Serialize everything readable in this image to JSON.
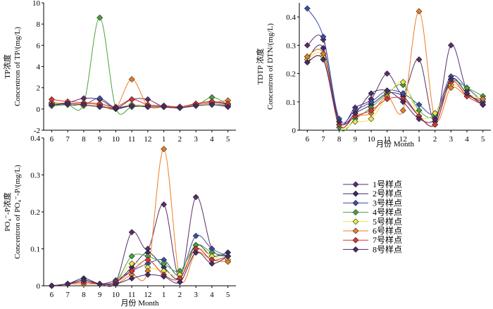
{
  "chart_data": [
    {
      "type": "line",
      "ylabel_1": "TP浓度",
      "ylabel_2": "Concentron of TP/(mg/L)",
      "xlabel": "",
      "ylim": [
        -2,
        10
      ],
      "yticks": [
        "-2",
        "0",
        "2",
        "4",
        "6",
        "8",
        "10"
      ],
      "categories": [
        "6",
        "7",
        "8",
        "9",
        "10",
        "11",
        "12",
        "1",
        "2",
        "3",
        "4",
        "5"
      ],
      "series": [
        {
          "name": "1号样点",
          "values": [
            0.5,
            0.6,
            1.0,
            0.9,
            0.1,
            0.9,
            0.9,
            0.2,
            0.2,
            0.5,
            0.7,
            0.4
          ]
        },
        {
          "name": "2号样点",
          "values": [
            0.3,
            0.5,
            0.3,
            0.3,
            0.0,
            0.3,
            0.2,
            0.2,
            0.1,
            0.4,
            0.5,
            0.3
          ]
        },
        {
          "name": "3号样点",
          "values": [
            0.6,
            0.4,
            0.4,
            1.0,
            0.1,
            0.4,
            0.3,
            0.3,
            0.2,
            0.4,
            0.6,
            0.5
          ]
        },
        {
          "name": "4号样点",
          "values": [
            0.3,
            0.4,
            0.5,
            8.6,
            0.1,
            0.2,
            0.3,
            0.3,
            0.2,
            0.3,
            1.1,
            0.4
          ]
        },
        {
          "name": "5号样点",
          "values": [
            0.5,
            0.5,
            0.3,
            0.3,
            0.1,
            0.4,
            0.3,
            0.3,
            0.2,
            0.4,
            0.5,
            0.4
          ]
        },
        {
          "name": "6号样点",
          "values": [
            0.6,
            0.5,
            0.5,
            0.4,
            0.1,
            2.8,
            0.3,
            0.2,
            0.2,
            0.4,
            0.6,
            0.8
          ]
        },
        {
          "name": "7号样点",
          "values": [
            0.9,
            0.7,
            0.6,
            0.5,
            0.2,
            0.9,
            0.4,
            0.3,
            0.2,
            0.5,
            0.7,
            0.5
          ]
        },
        {
          "name": "8号样点",
          "values": [
            0.4,
            0.5,
            0.4,
            0.2,
            0.1,
            0.3,
            0.2,
            0.2,
            0.1,
            0.3,
            0.4,
            0.2
          ]
        }
      ]
    },
    {
      "type": "line",
      "ylabel_1": "TDTP 浓度",
      "ylabel_2": "Concentron of DTN/(mg/L)",
      "xlabel": "月份 Month",
      "ylim": [
        0,
        0.45
      ],
      "yticks": [
        "0",
        "0.1",
        "0.2",
        "0.3",
        "0.4"
      ],
      "categories": [
        "6",
        "7",
        "8",
        "9",
        "10",
        "11",
        "12",
        "1",
        "2",
        "3",
        "4",
        "5"
      ],
      "series": [
        {
          "name": "1号样点",
          "values": [
            0.3,
            0.32,
            0.03,
            0.08,
            0.11,
            0.2,
            0.13,
            0.25,
            0.03,
            0.3,
            0.14,
            0.1
          ]
        },
        {
          "name": "2号样点",
          "values": [
            0.25,
            0.29,
            0.02,
            0.06,
            0.09,
            0.13,
            0.12,
            0.05,
            0.02,
            0.18,
            0.13,
            0.09
          ]
        },
        {
          "name": "3号样点",
          "values": [
            0.43,
            0.33,
            0.04,
            0.07,
            0.1,
            0.14,
            0.13,
            0.09,
            0.06,
            0.19,
            0.15,
            0.1
          ]
        },
        {
          "name": "4号样点",
          "values": [
            0.26,
            0.27,
            0.01,
            0.04,
            0.08,
            0.13,
            0.16,
            0.07,
            0.05,
            0.17,
            0.15,
            0.12
          ]
        },
        {
          "name": "5号样点",
          "values": [
            0.25,
            0.26,
            0.02,
            0.03,
            0.04,
            0.12,
            0.17,
            0.05,
            0.06,
            0.16,
            0.13,
            0.11
          ]
        },
        {
          "name": "6号样点",
          "values": [
            0.26,
            0.27,
            0.02,
            0.05,
            0.06,
            0.12,
            0.07,
            0.42,
            0.04,
            0.15,
            0.12,
            0.11
          ]
        },
        {
          "name": "7号样点",
          "values": [
            0.24,
            0.25,
            0.02,
            0.05,
            0.07,
            0.11,
            0.11,
            0.05,
            0.02,
            0.17,
            0.12,
            0.09
          ]
        },
        {
          "name": "8号样点",
          "values": [
            0.24,
            0.25,
            0.03,
            0.06,
            0.13,
            0.14,
            0.1,
            0.04,
            0.04,
            0.18,
            0.13,
            0.09
          ]
        }
      ]
    },
    {
      "type": "line",
      "ylabel_1": "PO₄⁻-P浓度",
      "ylabel_2": "Concentron of PO₄⁻-P/(mg/L)",
      "xlabel": "月份 Month",
      "ylim": [
        0,
        0.4
      ],
      "yticks": [
        "0",
        "0.1",
        "0.2",
        "0.3",
        "0.4"
      ],
      "categories": [
        "6",
        "7",
        "8",
        "9",
        "10",
        "11",
        "12",
        "1",
        "2",
        "3",
        "4",
        "5"
      ],
      "series": [
        {
          "name": "1号样点",
          "values": [
            0.0,
            0.005,
            0.01,
            0.005,
            0.01,
            0.145,
            0.1,
            0.22,
            0.02,
            0.24,
            0.1,
            0.08
          ]
        },
        {
          "name": "2号样点",
          "values": [
            0.0,
            0.005,
            0.02,
            0.005,
            0.01,
            0.05,
            0.09,
            0.05,
            0.02,
            0.11,
            0.08,
            0.09
          ]
        },
        {
          "name": "3号样点",
          "values": [
            0.0,
            0.005,
            0.015,
            0.005,
            0.015,
            0.04,
            0.06,
            0.07,
            0.03,
            0.135,
            0.1,
            0.08
          ]
        },
        {
          "name": "4号样点",
          "values": [
            0.0,
            0.005,
            0.01,
            0.005,
            0.01,
            0.08,
            0.08,
            0.06,
            0.04,
            0.11,
            0.09,
            0.08
          ]
        },
        {
          "name": "5号样点",
          "values": [
            0.0,
            0.005,
            0.01,
            0.005,
            0.01,
            0.06,
            0.05,
            0.04,
            0.03,
            0.1,
            0.08,
            0.07
          ]
        },
        {
          "name": "6号样点",
          "values": [
            0.0,
            0.005,
            0.005,
            0.005,
            0.005,
            0.03,
            0.04,
            0.37,
            0.02,
            0.09,
            0.07,
            0.065
          ]
        },
        {
          "name": "7号样点",
          "values": [
            0.0,
            0.005,
            0.01,
            0.005,
            0.01,
            0.04,
            0.07,
            0.03,
            0.02,
            0.1,
            0.07,
            0.08
          ]
        },
        {
          "name": "8号样点",
          "values": [
            0.0,
            0.005,
            0.015,
            0.005,
            0.005,
            0.02,
            0.03,
            0.025,
            0.01,
            0.09,
            0.06,
            0.08
          ]
        }
      ]
    }
  ],
  "legend": {
    "entries": [
      "1号样点",
      "2号样点",
      "3号样点",
      "4号样点",
      "5号样点",
      "6号样点",
      "7号样点",
      "8号样点"
    ],
    "colors": [
      "#5b2c6f",
      "#3b2a6b",
      "#3d4ea8",
      "#4aa33a",
      "#e8e84a",
      "#f07d22",
      "#e03232",
      "#4a2a6a"
    ]
  }
}
